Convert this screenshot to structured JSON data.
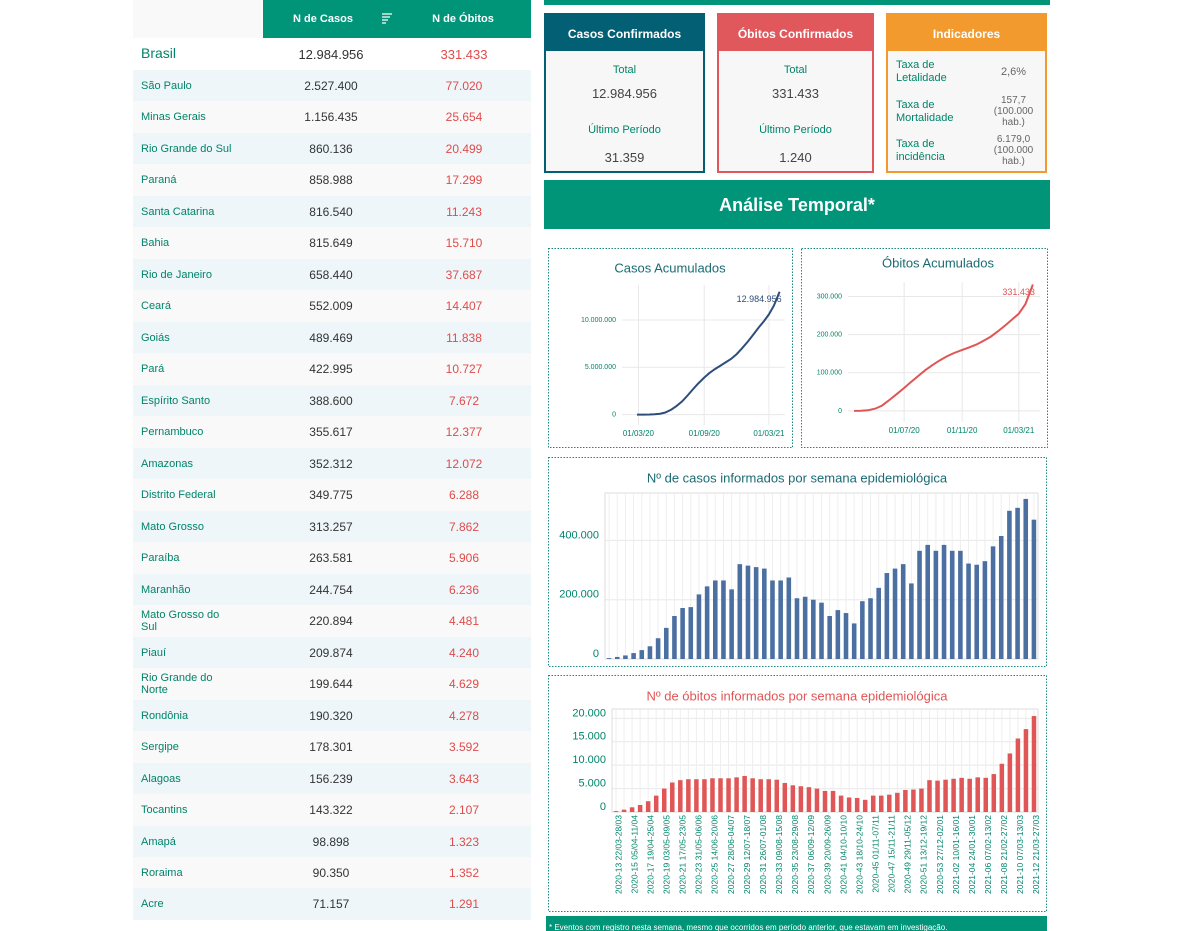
{
  "table": {
    "header": [
      "N de Casos",
      "N de Óbitos"
    ],
    "rows": [
      [
        "Brasil",
        "12.984.956",
        "331.433"
      ],
      [
        "São Paulo",
        "2.527.400",
        "77.020"
      ],
      [
        "Minas Gerais",
        "1.156.435",
        "25.654"
      ],
      [
        "Rio Grande do Sul",
        "860.136",
        "20.499"
      ],
      [
        "Paraná",
        "858.988",
        "17.299"
      ],
      [
        "Santa Catarina",
        "816.540",
        "11.243"
      ],
      [
        "Bahia",
        "815.649",
        "15.710"
      ],
      [
        "Rio de Janeiro",
        "658.440",
        "37.687"
      ],
      [
        "Ceará",
        "552.009",
        "14.407"
      ],
      [
        "Goiás",
        "489.469",
        "11.838"
      ],
      [
        "Pará",
        "422.995",
        "10.727"
      ],
      [
        "Espírito Santo",
        "388.600",
        "7.672"
      ],
      [
        "Pernambuco",
        "355.617",
        "12.377"
      ],
      [
        "Amazonas",
        "352.312",
        "12.072"
      ],
      [
        "Distrito Federal",
        "349.775",
        "6.288"
      ],
      [
        "Mato Grosso",
        "313.257",
        "7.862"
      ],
      [
        "Paraíba",
        "263.581",
        "5.906"
      ],
      [
        "Maranhão",
        "244.754",
        "6.236"
      ],
      [
        "Mato Grosso do Sul",
        "220.894",
        "4.481"
      ],
      [
        "Piauí",
        "209.874",
        "4.240"
      ],
      [
        "Rio Grande do Norte",
        "199.644",
        "4.629"
      ],
      [
        "Rondônia",
        "190.320",
        "4.278"
      ],
      [
        "Sergipe",
        "178.301",
        "3.592"
      ],
      [
        "Alagoas",
        "156.239",
        "3.643"
      ],
      [
        "Tocantins",
        "143.322",
        "2.107"
      ],
      [
        "Amapá",
        "98.898",
        "1.323"
      ],
      [
        "Roraima",
        "90.350",
        "1.352"
      ],
      [
        "Acre",
        "71.157",
        "1.291"
      ]
    ]
  },
  "cards": [
    {
      "title": "Casos Confirmados",
      "color": "#035f73",
      "items": [
        {
          "label": "Total",
          "value": "12.984.956"
        },
        {
          "label": "Último Período",
          "value": "31.359"
        }
      ]
    },
    {
      "title": "Óbitos Confirmados",
      "color": "#e0575c",
      "items": [
        {
          "label": "Total",
          "value": "331.433"
        },
        {
          "label": "Último Período",
          "value": "1.240"
        }
      ]
    }
  ],
  "indicators": {
    "title": "Indicadores",
    "color": "#f39a2f",
    "items": [
      {
        "label": "Taxa de Letalidade",
        "value": "2,6%"
      },
      {
        "label": "Taxa de Mortalidade",
        "value": "157,7 (100.000 hab.)"
      },
      {
        "label": "Taxa de incidência",
        "value": "6.179,0 (100.000 hab.)"
      }
    ]
  },
  "section_title": "Análise Temporal*",
  "footnote": "* Eventos com registro nesta semana, mesmo que ocorridos em período anterior, que estavam em investigação.",
  "chart_data": [
    {
      "type": "line",
      "title": "Casos Acumulados",
      "title_color": "#1a6b73",
      "color": "#2e4d7b",
      "grid": true,
      "x": [
        "2020-02-26",
        "2020-03-15",
        "2020-04-01",
        "2020-04-15",
        "2020-05-01",
        "2020-05-15",
        "2020-06-01",
        "2020-06-15",
        "2020-07-01",
        "2020-07-15",
        "2020-08-01",
        "2020-08-15",
        "2020-09-01",
        "2020-09-15",
        "2020-10-01",
        "2020-10-15",
        "2020-11-01",
        "2020-11-15",
        "2020-12-01",
        "2020-12-15",
        "2021-01-01",
        "2021-01-15",
        "2021-02-01",
        "2021-02-15",
        "2021-03-01",
        "2021-03-15",
        "2021-03-31"
      ],
      "values": [
        0,
        200,
        6800,
        28000,
        92000,
        220000,
        526000,
        890000,
        1400000,
        1970000,
        2700000,
        3280000,
        3910000,
        4380000,
        4810000,
        5140000,
        5550000,
        5880000,
        6390000,
        6970000,
        7720000,
        8390000,
        9230000,
        9870000,
        10590000,
        11520000,
        12984956
      ],
      "value_labels": [
        null,
        null,
        null,
        null,
        null,
        null,
        null,
        null,
        null,
        null,
        null,
        null,
        null,
        null,
        null,
        null,
        null,
        null,
        null,
        null,
        null,
        null,
        null,
        null,
        null,
        null,
        "12.984.956"
      ],
      "xlim": [
        "2020-01-15",
        "2021-04-15"
      ],
      "xticks": [
        {
          "value": "2020-03-01",
          "label": "01/03/20"
        },
        {
          "value": "2020-09-01",
          "label": "01/09/20"
        },
        {
          "value": "2021-03-01",
          "label": "01/03/21"
        }
      ],
      "ylim": [
        -1100000,
        13700000
      ],
      "yticks": [
        0,
        {
          "value": 5000000,
          "label": "5.000.000"
        },
        {
          "value": 10000000,
          "label": "10.000.000"
        }
      ]
    },
    {
      "type": "line",
      "title": "Óbitos Acumulados",
      "title_color": "#1a6b73",
      "color": "#e05555",
      "grid": true,
      "x": [
        "2020-03-17",
        "2020-04-01",
        "2020-04-15",
        "2020-05-01",
        "2020-05-15",
        "2020-06-01",
        "2020-06-15",
        "2020-07-01",
        "2020-07-15",
        "2020-08-01",
        "2020-08-15",
        "2020-09-01",
        "2020-09-15",
        "2020-10-01",
        "2020-10-15",
        "2020-11-01",
        "2020-11-15",
        "2020-12-01",
        "2020-12-15",
        "2021-01-01",
        "2021-01-15",
        "2021-02-01",
        "2021-02-15",
        "2021-03-01",
        "2021-03-15",
        "2021-03-31"
      ],
      "values": [
        0,
        240,
        1700,
        6000,
        14000,
        30000,
        44000,
        60000,
        75000,
        93000,
        107000,
        122000,
        133000,
        144000,
        152000,
        160000,
        166000,
        174000,
        183000,
        195000,
        208000,
        225000,
        240000,
        255000,
        280000,
        331433
      ],
      "value_labels": [
        null,
        null,
        null,
        null,
        null,
        null,
        null,
        null,
        null,
        null,
        null,
        null,
        null,
        null,
        null,
        null,
        null,
        null,
        null,
        null,
        null,
        null,
        null,
        null,
        null,
        "331.433"
      ],
      "xlim": [
        "2020-03-04",
        "2021-04-15"
      ],
      "xticks": [
        {
          "value": "2020-07-01",
          "label": "01/07/20"
        },
        {
          "value": "2020-11-01",
          "label": "01/11/20"
        },
        {
          "value": "2021-03-01",
          "label": "01/03/21"
        }
      ],
      "ylim": [
        -29000,
        338000
      ],
      "yticks": [
        0,
        {
          "value": 100000,
          "label": "100.000"
        },
        {
          "value": 200000,
          "label": "200.000"
        },
        {
          "value": 300000,
          "label": "300.000"
        }
      ]
    },
    {
      "type": "bar",
      "title": "Nº de casos informados por semana epidemiológica",
      "title_color": "#1a6b73",
      "color": "#4a6fa0",
      "grid": true,
      "values": [
        3000,
        7000,
        12000,
        20000,
        30000,
        43000,
        70000,
        105000,
        145000,
        172000,
        175000,
        218000,
        245000,
        265000,
        265000,
        235000,
        320000,
        315000,
        310000,
        305000,
        265000,
        265000,
        275000,
        205000,
        210000,
        200000,
        190000,
        145000,
        165000,
        155000,
        120000,
        195000,
        205000,
        240000,
        290000,
        305000,
        320000,
        255000,
        365000,
        385000,
        365000,
        385000,
        365000,
        365000,
        322000,
        318000,
        330000,
        380000,
        415000,
        500000,
        510000,
        540000,
        470000
      ],
      "ylim": [
        0,
        560000
      ],
      "yticks": [
        0,
        {
          "value": 200000,
          "label": "200.000"
        },
        {
          "value": 400000,
          "label": "400.000"
        }
      ]
    },
    {
      "type": "bar",
      "title": "Nº de óbitos informados por semana epidemiológica",
      "title_color": "#e05555",
      "color": "#e05555",
      "grid": true,
      "categories": [
        "2020-13 22/03-28/03",
        null,
        "2020-15 05/04-11/04",
        null,
        "2020-17 19/04-25/04",
        null,
        "2020-19 03/05-09/05",
        null,
        "2020-21 17/05-23/05",
        null,
        "2020-23 31/05-06/06",
        null,
        "2020-25 14/06-20/06",
        null,
        "2020-27 28/06-04/07",
        null,
        "2020-29 12/07-18/07",
        null,
        "2020-31 26/07-01/08",
        null,
        "2020-33 09/08-15/08",
        null,
        "2020-35 23/08-29/08",
        null,
        "2020-37 06/09-12/09",
        null,
        "2020-39 20/09-26/09",
        null,
        "2020-41 04/10-10/10",
        null,
        "2020-43 18/10-24/10",
        null,
        "2020-45 01/11-07/11",
        null,
        "2020-47 15/11-21/11",
        null,
        "2020-49 29/11-05/12",
        null,
        "2020-51 13/12-19/12",
        null,
        "2020-53 27/12-02/01",
        null,
        "2021-02 10/01-16/01",
        null,
        "2021-04 24/01-30/01",
        null,
        "2021-06 07/02-13/02",
        null,
        "2021-08 21/02-27/02",
        null,
        "2021-10 07/03-13/03",
        null,
        "2021-12 21/03-27/03"
      ],
      "values": [
        200,
        500,
        1000,
        1500,
        2300,
        3500,
        5000,
        6300,
        6800,
        7000,
        7000,
        7000,
        7200,
        7200,
        7200,
        7400,
        7700,
        7200,
        7000,
        7000,
        6900,
        6200,
        5700,
        5500,
        5300,
        5000,
        4500,
        4500,
        3500,
        3100,
        3000,
        2600,
        3500,
        3500,
        3700,
        4100,
        4700,
        4800,
        5000,
        6800,
        6700,
        6900,
        7100,
        7300,
        7100,
        7400,
        7300,
        8100,
        10300,
        12500,
        15700,
        17700,
        20500
      ],
      "ylim": [
        0,
        22000
      ],
      "yticks": [
        0,
        {
          "value": 5000,
          "label": "5.000"
        },
        {
          "value": 10000,
          "label": "10.000"
        },
        {
          "value": 15000,
          "label": "15.000"
        },
        {
          "value": 20000,
          "label": "20.000"
        }
      ]
    }
  ]
}
